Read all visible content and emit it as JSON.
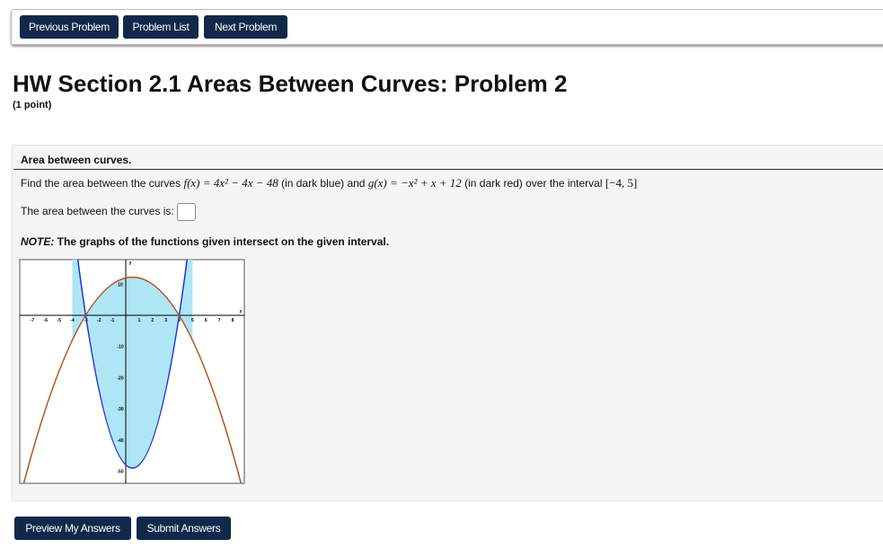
{
  "nav": {
    "buttons": [
      "Previous Problem",
      "Problem List",
      "Next Problem"
    ]
  },
  "header": {
    "title": "HW Section 2.1 Areas Between Curves: Problem 2",
    "points": "(1 point)"
  },
  "problem": {
    "heading": "Area between curves.",
    "statement": [
      "Find the area between the curves ",
      "f(x) = 4x² − 4x − 48",
      " (in dark blue) and ",
      "g(x) = −x² + x + 12",
      " (in dark red) over the interval ",
      "[−4, 5]"
    ],
    "answer_prompt": "The area between the curves is:",
    "note_label": "NOTE:",
    "note_text": " The graphs of the functions given intersect on the given interval.",
    "graph": {
      "x_axis_label": "x",
      "y_axis_label": "y",
      "x_tick_labels": [
        "-7",
        "-6",
        "-5",
        "-4",
        "-3",
        "-2",
        "-1",
        "1",
        "2",
        "3",
        "4",
        "5",
        "6",
        "7",
        "8"
      ],
      "y_tick_labels": [
        "10",
        "-10",
        "-20",
        "-30",
        "-40",
        "-50"
      ]
    }
  },
  "footer": {
    "buttons": [
      "Preview My Answers",
      "Submit Answers"
    ]
  }
}
